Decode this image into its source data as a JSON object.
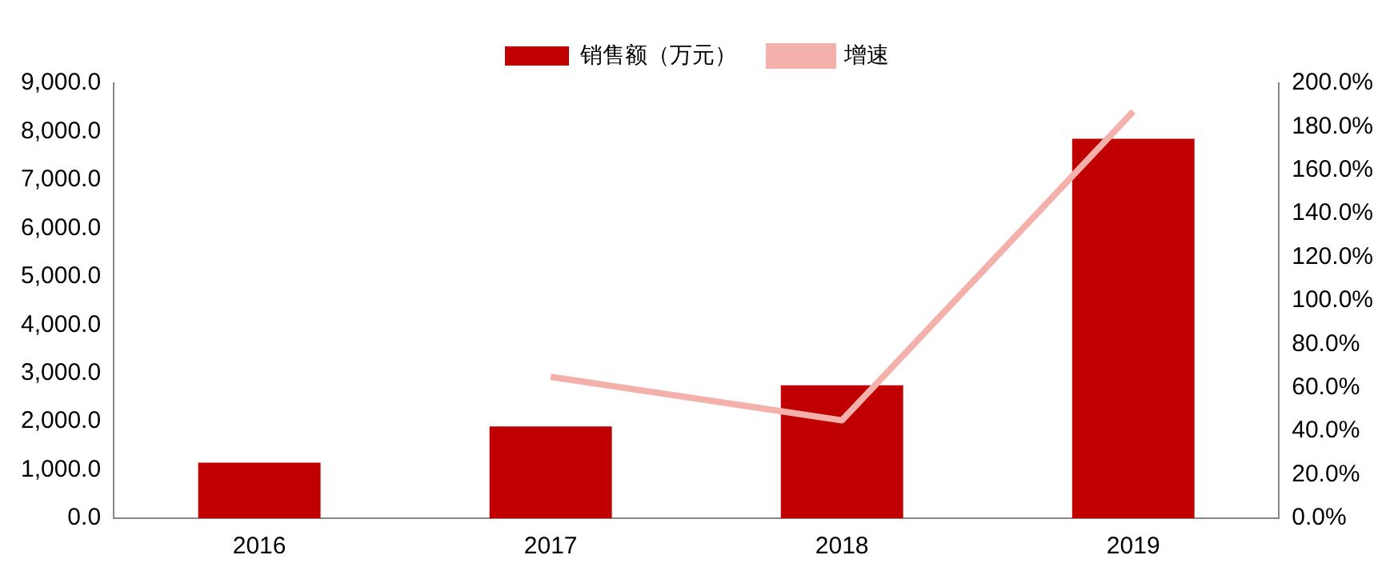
{
  "chart_data": {
    "type": "bar",
    "categories": [
      "2016",
      "2017",
      "2018",
      "2019"
    ],
    "series": [
      {
        "name": "销售额（万元）",
        "color": "#c00000",
        "values": [
          1150,
          1900,
          2750,
          7850
        ]
      },
      {
        "name": "增速",
        "type": "line",
        "axis": "y2",
        "color": "#f4b0aa",
        "values": [
          null,
          65,
          45,
          187
        ]
      }
    ],
    "ylim": [
      0,
      9000
    ],
    "yticks": [
      {
        "value": 0,
        "label": "0.0"
      },
      {
        "value": 1000,
        "label": "1,000.0"
      },
      {
        "value": 2000,
        "label": "2,000.0"
      },
      {
        "value": 3000,
        "label": "3,000.0"
      },
      {
        "value": 4000,
        "label": "4,000.0"
      },
      {
        "value": 5000,
        "label": "5,000.0"
      },
      {
        "value": 6000,
        "label": "6,000.0"
      },
      {
        "value": 7000,
        "label": "7,000.0"
      },
      {
        "value": 8000,
        "label": "8,000.0"
      },
      {
        "value": 9000,
        "label": "9,000.0"
      }
    ],
    "y2lim": [
      0,
      200
    ],
    "y2ticks": [
      {
        "value": 0,
        "label": "0.0%"
      },
      {
        "value": 20,
        "label": "20.0%"
      },
      {
        "value": 40,
        "label": "40.0%"
      },
      {
        "value": 60,
        "label": "60.0%"
      },
      {
        "value": 80,
        "label": "80.0%"
      },
      {
        "value": 100,
        "label": "100.0%"
      },
      {
        "value": 120,
        "label": "120.0%"
      },
      {
        "value": 140,
        "label": "140.0%"
      },
      {
        "value": 160,
        "label": "160.0%"
      },
      {
        "value": 180,
        "label": "180.0%"
      },
      {
        "value": 200,
        "label": "200.0%"
      }
    ],
    "legend": "top",
    "grid": false,
    "marker": "none"
  }
}
